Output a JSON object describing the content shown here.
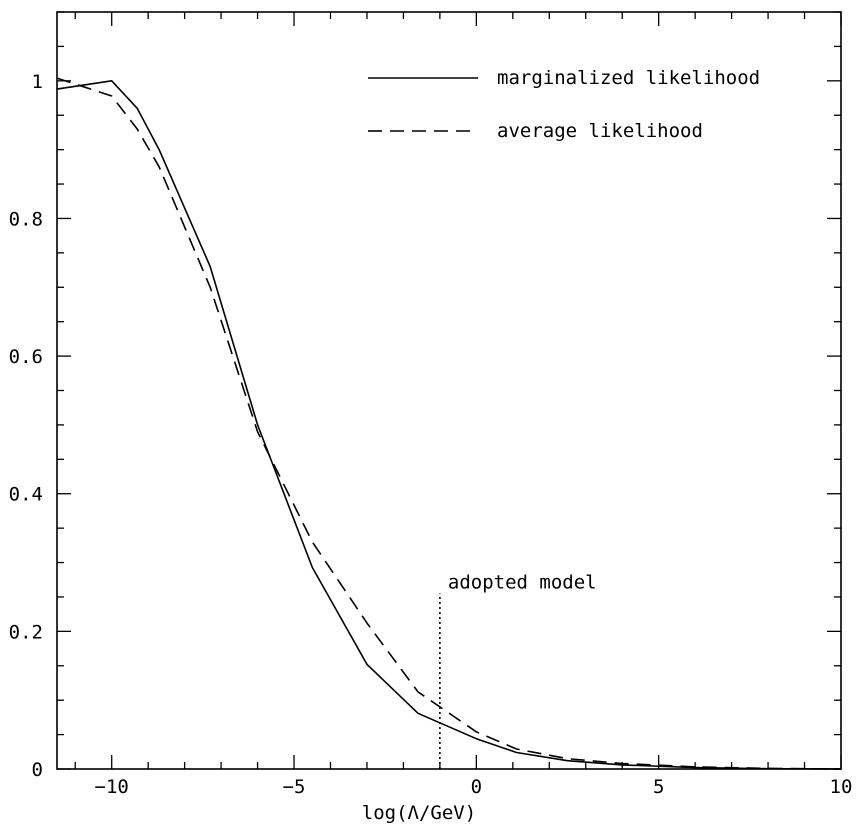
{
  "chart_data": {
    "type": "line",
    "title": "",
    "xlabel": "log(Λ/GeV)",
    "ylabel": "",
    "xlim": [
      -11.5,
      10
    ],
    "ylim": [
      0,
      1.1
    ],
    "grid": false,
    "legend_position": "top-right",
    "x_ticks": [
      -10,
      -5,
      0,
      5,
      10
    ],
    "x_tick_labels": [
      "−10",
      "−5",
      "0",
      "5",
      "10"
    ],
    "y_ticks": [
      0,
      0.2,
      0.4,
      0.6,
      0.8,
      1
    ],
    "y_tick_labels": [
      "0",
      "0.2",
      "0.4",
      "0.6",
      "0.8",
      "1"
    ],
    "series": [
      {
        "name": "marginalized likelihood",
        "line_style": "solid",
        "color": "#000000",
        "x": [
          -11.5,
          -10,
          -9.3,
          -8.7,
          -7.3,
          -6,
          -4.5,
          -3,
          -1.6,
          0,
          1.1,
          2.5,
          4,
          6,
          8,
          10
        ],
        "y": [
          0.988,
          1.0,
          0.96,
          0.9,
          0.73,
          0.5,
          0.293,
          0.152,
          0.081,
          0.044,
          0.024,
          0.012,
          0.006,
          0.002,
          0.0005,
          0.0
        ]
      },
      {
        "name": "average likelihood",
        "line_style": "dashed",
        "color": "#000000",
        "x": [
          -11.5,
          -10,
          -9.3,
          -8.7,
          -7.3,
          -6,
          -4.5,
          -3,
          -1.6,
          0,
          1.1,
          2.5,
          4,
          6,
          8,
          10
        ],
        "y": [
          1.004,
          0.978,
          0.93,
          0.875,
          0.7,
          0.49,
          0.33,
          0.212,
          0.112,
          0.054,
          0.029,
          0.015,
          0.008,
          0.003,
          0.0008,
          0.0
        ]
      }
    ],
    "annotations": [
      {
        "text": "adopted model",
        "x": -1.0,
        "y_from": 0,
        "y_to": 0.255,
        "line_style": "dotted"
      }
    ]
  }
}
